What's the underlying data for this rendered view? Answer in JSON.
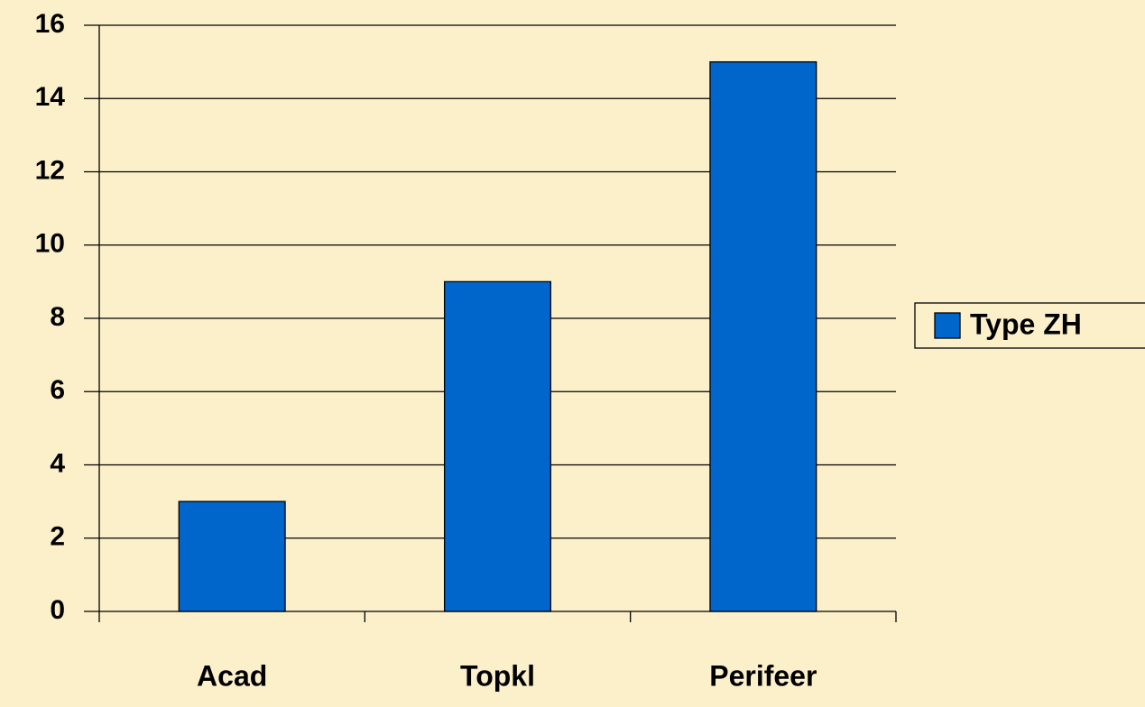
{
  "chart_data": {
    "type": "bar",
    "categories": [
      "Acad",
      "Topkl",
      "Perifeer"
    ],
    "series": [
      {
        "name": "Type ZH",
        "color": "#0066CC",
        "values": [
          3,
          9,
          15
        ]
      }
    ],
    "ylim": [
      0,
      16
    ],
    "yticks": [
      0,
      2,
      4,
      6,
      8,
      10,
      12,
      14,
      16
    ],
    "grid": true,
    "legend": "right"
  }
}
